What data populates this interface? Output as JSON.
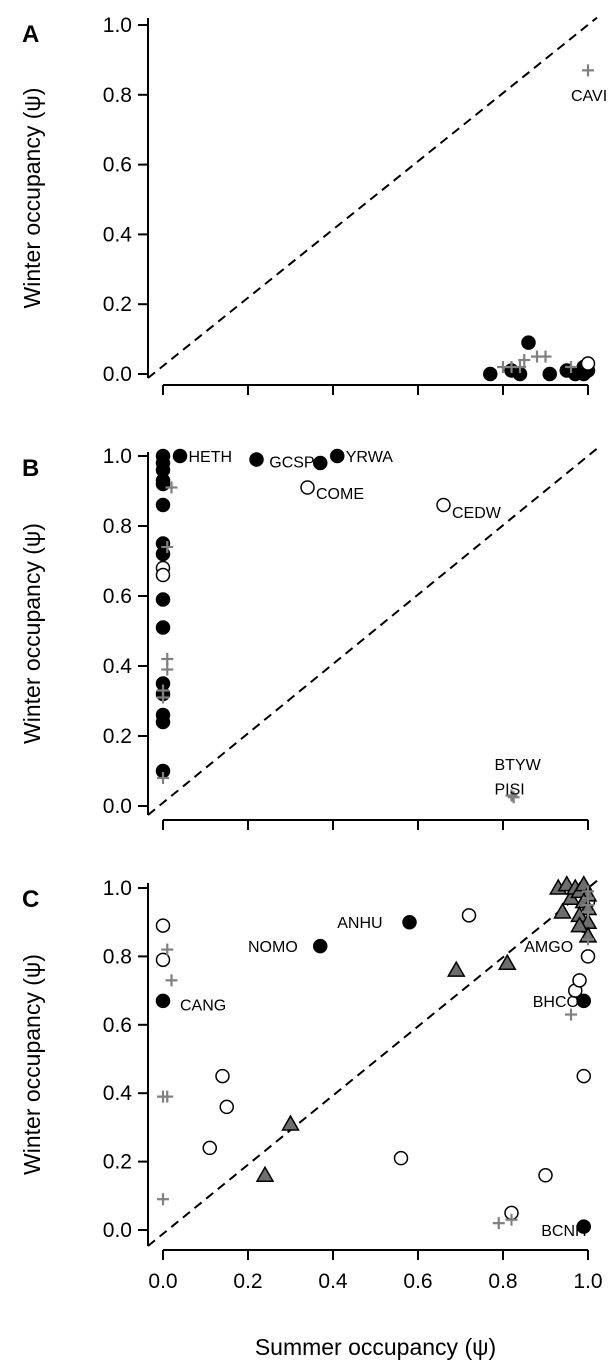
{
  "chart_data": [
    {
      "panel": "A",
      "type": "scatter",
      "xlabel": "",
      "ylabel": "Winter occupancy (ψ)",
      "xlim": [
        0,
        1
      ],
      "ylim": [
        0,
        1
      ],
      "x_tick_labels": [],
      "y_ticks": [
        "0.0",
        "0.2",
        "0.4",
        "0.6",
        "0.8",
        "1.0"
      ],
      "reference_line": "1:1 dashed",
      "series": [
        {
          "marker": "filled-circle",
          "points": [
            {
              "x": 0.77,
              "y": 0.0
            },
            {
              "x": 0.82,
              "y": 0.01
            },
            {
              "x": 0.84,
              "y": 0.0
            },
            {
              "x": 0.86,
              "y": 0.09
            },
            {
              "x": 0.91,
              "y": 0.0
            },
            {
              "x": 0.95,
              "y": 0.01
            },
            {
              "x": 0.97,
              "y": 0.0
            },
            {
              "x": 0.99,
              "y": 0.0
            },
            {
              "x": 1.0,
              "y": 0.01
            },
            {
              "x": 0.99,
              "y": 0.02
            }
          ]
        },
        {
          "marker": "open-circle",
          "points": [
            {
              "x": 1.0,
              "y": 0.03
            }
          ]
        },
        {
          "marker": "plus",
          "points": [
            {
              "x": 0.8,
              "y": 0.02
            },
            {
              "x": 0.82,
              "y": 0.02
            },
            {
              "x": 0.84,
              "y": 0.02
            },
            {
              "x": 0.85,
              "y": 0.04
            },
            {
              "x": 0.88,
              "y": 0.05
            },
            {
              "x": 0.9,
              "y": 0.05
            },
            {
              "x": 0.96,
              "y": 0.02
            },
            {
              "x": 1.0,
              "y": 0.87
            }
          ]
        }
      ],
      "labels": [
        {
          "text": "CAVI",
          "x": 0.96,
          "y": 0.8
        }
      ]
    },
    {
      "panel": "B",
      "type": "scatter",
      "xlabel": "",
      "ylabel": "Winter occupancy (ψ)",
      "xlim": [
        0,
        1
      ],
      "ylim": [
        0,
        1
      ],
      "x_tick_labels": [],
      "y_ticks": [
        "0.0",
        "0.2",
        "0.4",
        "0.6",
        "0.8",
        "1.0"
      ],
      "reference_line": "1:1 dashed",
      "series": [
        {
          "marker": "filled-circle",
          "points": [
            {
              "x": 0.0,
              "y": 1.0
            },
            {
              "x": 0.0,
              "y": 0.98
            },
            {
              "x": 0.0,
              "y": 0.96
            },
            {
              "x": 0.0,
              "y": 0.93
            },
            {
              "x": 0.0,
              "y": 0.92
            },
            {
              "x": 0.0,
              "y": 0.86
            },
            {
              "x": 0.0,
              "y": 0.75
            },
            {
              "x": 0.0,
              "y": 0.72
            },
            {
              "x": 0.0,
              "y": 0.59
            },
            {
              "x": 0.0,
              "y": 0.51
            },
            {
              "x": 0.0,
              "y": 0.35
            },
            {
              "x": 0.0,
              "y": 0.32
            },
            {
              "x": 0.0,
              "y": 0.26
            },
            {
              "x": 0.0,
              "y": 0.24
            },
            {
              "x": 0.0,
              "y": 0.1
            },
            {
              "x": 0.04,
              "y": 1.0
            },
            {
              "x": 0.22,
              "y": 0.99
            },
            {
              "x": 0.37,
              "y": 0.98
            },
            {
              "x": 0.41,
              "y": 1.0
            }
          ]
        },
        {
          "marker": "open-circle",
          "points": [
            {
              "x": 0.0,
              "y": 0.68
            },
            {
              "x": 0.0,
              "y": 0.66
            },
            {
              "x": 0.34,
              "y": 0.91
            },
            {
              "x": 0.66,
              "y": 0.86
            }
          ]
        },
        {
          "marker": "plus",
          "points": [
            {
              "x": 0.02,
              "y": 0.91
            },
            {
              "x": 0.01,
              "y": 0.74
            },
            {
              "x": 0.01,
              "y": 0.42
            },
            {
              "x": 0.01,
              "y": 0.39
            },
            {
              "x": 0.0,
              "y": 0.33
            },
            {
              "x": 0.0,
              "y": 0.31
            },
            {
              "x": 0.0,
              "y": 0.08
            },
            {
              "x": 0.82,
              "y": 0.03
            },
            {
              "x": 0.825,
              "y": 0.025
            }
          ]
        }
      ],
      "labels": [
        {
          "text": "HETH",
          "x": 0.06,
          "y": 1.0
        },
        {
          "text": "GCSP",
          "x": 0.25,
          "y": 0.985
        },
        {
          "text": "YRWA",
          "x": 0.43,
          "y": 1.0
        },
        {
          "text": "COME",
          "x": 0.36,
          "y": 0.895
        },
        {
          "text": "CEDW",
          "x": 0.68,
          "y": 0.84
        },
        {
          "text": "BTYW",
          "x": 0.78,
          "y": 0.12
        },
        {
          "text": "PISI",
          "x": 0.78,
          "y": 0.05
        }
      ]
    },
    {
      "panel": "C",
      "type": "scatter",
      "xlabel": "Summer occupancy (ψ)",
      "ylabel": "Winter occupancy (ψ)",
      "xlim": [
        0,
        1
      ],
      "ylim": [
        0,
        1
      ],
      "x_tick_labels": [
        "0.0",
        "0.2",
        "0.4",
        "0.6",
        "0.8",
        "1.0"
      ],
      "y_ticks": [
        "0.0",
        "0.2",
        "0.4",
        "0.6",
        "0.8",
        "1.0"
      ],
      "reference_line": "1:1 dashed",
      "series": [
        {
          "marker": "filled-circle",
          "points": [
            {
              "x": 0.0,
              "y": 0.67
            },
            {
              "x": 0.37,
              "y": 0.83
            },
            {
              "x": 0.58,
              "y": 0.9
            },
            {
              "x": 0.99,
              "y": 0.67
            },
            {
              "x": 0.99,
              "y": 0.01
            }
          ]
        },
        {
          "marker": "open-circle",
          "points": [
            {
              "x": 0.0,
              "y": 0.89
            },
            {
              "x": 0.0,
              "y": 0.79
            },
            {
              "x": 0.11,
              "y": 0.24
            },
            {
              "x": 0.14,
              "y": 0.45
            },
            {
              "x": 0.15,
              "y": 0.36
            },
            {
              "x": 0.56,
              "y": 0.21
            },
            {
              "x": 0.72,
              "y": 0.92
            },
            {
              "x": 0.82,
              "y": 0.05
            },
            {
              "x": 0.9,
              "y": 0.16
            },
            {
              "x": 0.97,
              "y": 0.7
            },
            {
              "x": 0.98,
              "y": 0.73
            },
            {
              "x": 0.99,
              "y": 0.45
            },
            {
              "x": 1.0,
              "y": 0.8
            },
            {
              "x": 0.99,
              "y": 0.89
            },
            {
              "x": 1.0,
              "y": 0.96
            }
          ]
        },
        {
          "marker": "gray-triangle",
          "points": [
            {
              "x": 0.24,
              "y": 0.16
            },
            {
              "x": 0.3,
              "y": 0.31
            },
            {
              "x": 0.69,
              "y": 0.76
            },
            {
              "x": 0.81,
              "y": 0.78
            },
            {
              "x": 0.93,
              "y": 1.0
            },
            {
              "x": 0.95,
              "y": 1.01
            },
            {
              "x": 0.94,
              "y": 0.93
            },
            {
              "x": 0.96,
              "y": 0.97
            },
            {
              "x": 0.97,
              "y": 1.0
            },
            {
              "x": 0.98,
              "y": 0.99
            },
            {
              "x": 0.99,
              "y": 1.01
            },
            {
              "x": 1.0,
              "y": 0.98
            },
            {
              "x": 0.99,
              "y": 0.96
            },
            {
              "x": 1.0,
              "y": 0.94
            },
            {
              "x": 0.98,
              "y": 0.92
            },
            {
              "x": 1.0,
              "y": 0.9
            },
            {
              "x": 0.98,
              "y": 0.89
            },
            {
              "x": 1.0,
              "y": 0.86
            }
          ]
        },
        {
          "marker": "plus",
          "points": [
            {
              "x": 0.01,
              "y": 0.82
            },
            {
              "x": 0.02,
              "y": 0.73
            },
            {
              "x": 0.0,
              "y": 0.39
            },
            {
              "x": 0.01,
              "y": 0.39
            },
            {
              "x": 0.0,
              "y": 0.09
            },
            {
              "x": 0.79,
              "y": 0.02
            },
            {
              "x": 0.82,
              "y": 0.03
            },
            {
              "x": 0.96,
              "y": 0.63
            },
            {
              "x": 1.0,
              "y": 0.85
            },
            {
              "x": 1.0,
              "y": 0.99
            },
            {
              "x": 1.0,
              "y": 0.97
            },
            {
              "x": 1.0,
              "y": 0.95
            },
            {
              "x": 1.0,
              "y": 0.93
            }
          ]
        }
      ],
      "labels": [
        {
          "text": "NOMO",
          "x": 0.2,
          "y": 0.83
        },
        {
          "text": "ANHU",
          "x": 0.41,
          "y": 0.9
        },
        {
          "text": "CANG",
          "x": 0.04,
          "y": 0.66
        },
        {
          "text": "AMGO",
          "x": 0.85,
          "y": 0.83
        },
        {
          "text": "BHCO",
          "x": 0.87,
          "y": 0.67
        },
        {
          "text": "BCNH",
          "x": 0.89,
          "y": 0.0
        }
      ]
    }
  ],
  "colors": {
    "filled_circle": "#000000",
    "open_circle_fill": "#ffffff",
    "triangle_fill": "#6e6e6e",
    "plus": "#808080",
    "axis": "#000000"
  }
}
